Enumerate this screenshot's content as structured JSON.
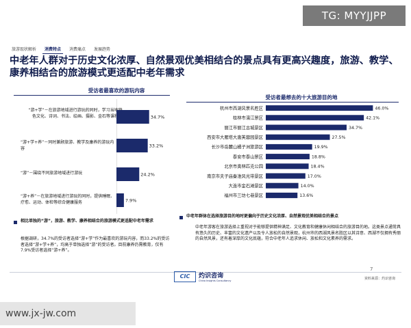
{
  "watermarks": {
    "top": "TG: MYYJJPP",
    "bottom": "www.jx-jw.com"
  },
  "tabs": [
    "旅游现状解析",
    "消费特点",
    "消费痛点",
    "发展趋势"
  ],
  "title": "中老年人群对于历史文化浓厚、自然景观优美相结合的景点具有更高兴趣度，旅游、教学、康养相结合的旅游模式更适配中老年需求",
  "left_panel": {
    "title": "受访者最喜欢的游玩内容",
    "rows": [
      {
        "text": "“游+学”－在旅游地域进行游玩的同时，学习当地特色文化、诗词、书法、绘画、摄影、金石等课程"
      },
      {
        "text": "“游+学+养”－同时兼顾旅游、教学及康养的游玩内容"
      },
      {
        "text": "“游”－围绕不同旅游地域进行游玩"
      },
      {
        "text": "“游+养”－在旅游地域进行游玩的同时，提供睡眠、疗愈、运动、体检等综合健康服务"
      }
    ],
    "note_head": "相比单独的“游”，旅游、教学、康养相结合的旅游模式更适配中老年需求",
    "note_body": "根据调研，34.7%的受访者选择“游+学”作为最喜欢的游玩内容，而33.2%的受访者选择“游+学+养”，均高于单独选择“游”的受访者。目前康养仍需教育，仅有7.9%受访者选择“游+养”。"
  },
  "right_panel": {
    "title": "受访者最想去的十大旅游目的地",
    "note_head": "中老年群体在选择旅游目的地时更偏向于历史文化浓厚、自然景观优美相结合的景点",
    "note_body": "中老年游客在旅游选择上重视对于能够提供精神满足、文化教育和健康休闲相结合的旅游目的地。这类景点通常具有悠久的历史、丰富的文化遗产以及令人放松的自然景观，杭州市的西湖风景名胜区以其诗意、西湖不仅拥有秀丽的自然风景，还有着深厚的文化底蕴，符合中老年人追求休闲、放松和文化素养的需求。"
  },
  "footer": {
    "page": "7",
    "source": "资料来源：灼识咨询",
    "logo_mark": "CIC",
    "logo_name": "灼识咨询",
    "logo_sub": "China Insights Consultancy"
  },
  "chart_data": [
    {
      "type": "bar",
      "orientation": "horizontal",
      "title": "受访者最喜欢的游玩内容",
      "categories": [
        "游+学",
        "游+学+养",
        "游",
        "游+养"
      ],
      "values": [
        34.7,
        33.2,
        24.2,
        7.9
      ],
      "value_labels": [
        "34.7%",
        "33.2%",
        "24.2%",
        "7.9%"
      ],
      "xlim": [
        0,
        40
      ],
      "color": "#1b2a6b"
    },
    {
      "type": "bar",
      "orientation": "horizontal",
      "title": "受访者最想去的十大旅游目的地",
      "categories": [
        "杭州市西湖风景名胜区",
        "桂林市漓江景区",
        "丽江市丽江古城景区",
        "西安市大雁塔大唐芙蓉园景区",
        "长沙市岳麓山橘子洲旅游区",
        "泰安市泰山景区",
        "北京市奥林匹克公园",
        "南京市夫子庙秦淮风光带景区",
        "大连市金石滩景区",
        "福州市三坊七巷景区"
      ],
      "values": [
        46.0,
        42.1,
        34.7,
        27.5,
        19.9,
        18.8,
        18.4,
        17.0,
        14.0,
        13.6
      ],
      "value_labels": [
        "46.0%",
        "42.1%",
        "34.7%",
        "27.5%",
        "19.9%",
        "18.8%",
        "18.4%",
        "17.0%",
        "14.0%",
        "13.6%"
      ],
      "xlim": [
        0,
        50
      ],
      "color": "#1b2a6b"
    }
  ]
}
